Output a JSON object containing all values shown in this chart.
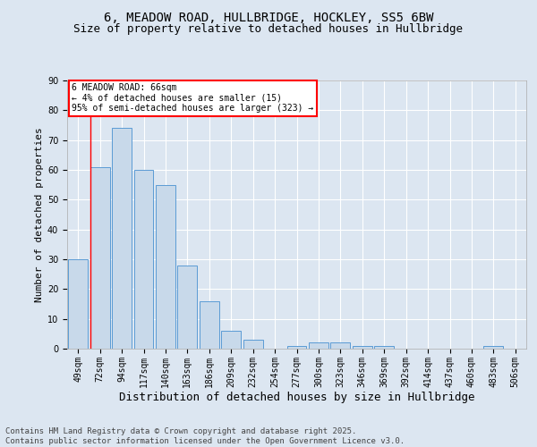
{
  "title1": "6, MEADOW ROAD, HULLBRIDGE, HOCKLEY, SS5 6BW",
  "title2": "Size of property relative to detached houses in Hullbridge",
  "xlabel": "Distribution of detached houses by size in Hullbridge",
  "ylabel": "Number of detached properties",
  "categories": [
    "49sqm",
    "72sqm",
    "94sqm",
    "117sqm",
    "140sqm",
    "163sqm",
    "186sqm",
    "209sqm",
    "232sqm",
    "254sqm",
    "277sqm",
    "300sqm",
    "323sqm",
    "346sqm",
    "369sqm",
    "392sqm",
    "414sqm",
    "437sqm",
    "460sqm",
    "483sqm",
    "506sqm"
  ],
  "values": [
    30,
    61,
    74,
    60,
    55,
    28,
    16,
    6,
    3,
    0,
    1,
    2,
    2,
    1,
    1,
    0,
    0,
    0,
    0,
    1,
    0
  ],
  "bar_color": "#c8d9ea",
  "bar_edge_color": "#5b9bd5",
  "background_color": "#dce6f1",
  "ylim": [
    0,
    90
  ],
  "yticks": [
    0,
    10,
    20,
    30,
    40,
    50,
    60,
    70,
    80,
    90
  ],
  "annotation_text": "6 MEADOW ROAD: 66sqm\n← 4% of detached houses are smaller (15)\n95% of semi-detached houses are larger (323) →",
  "red_line_x": 0.55,
  "footer": "Contains HM Land Registry data © Crown copyright and database right 2025.\nContains public sector information licensed under the Open Government Licence v3.0.",
  "title_fontsize": 10,
  "subtitle_fontsize": 9,
  "ylabel_fontsize": 8,
  "xlabel_fontsize": 9,
  "tick_fontsize": 7,
  "annotation_fontsize": 7,
  "footer_fontsize": 6.5
}
